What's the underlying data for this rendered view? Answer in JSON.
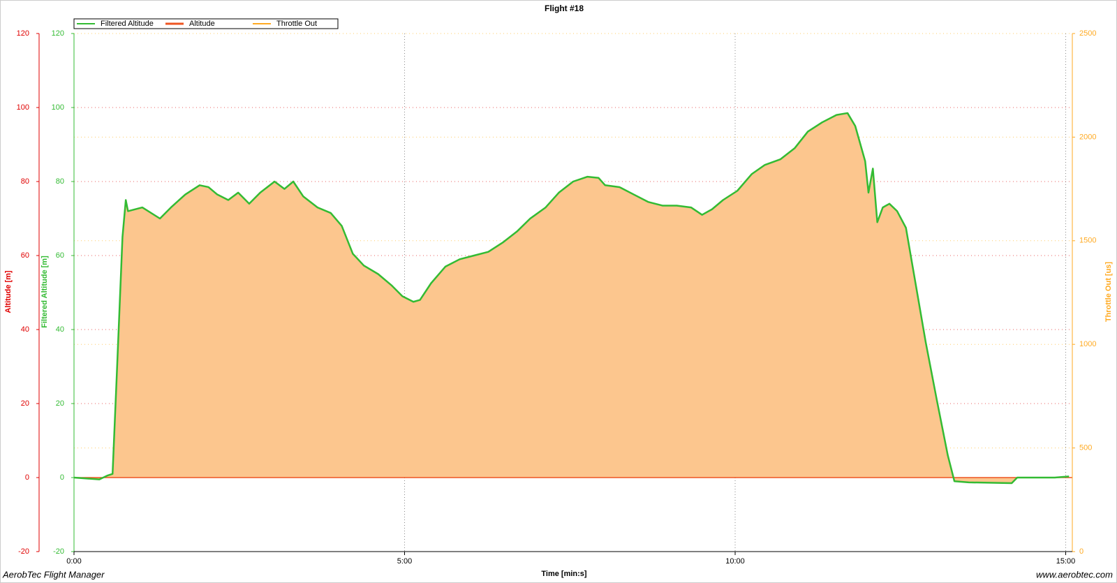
{
  "chart_data": {
    "type": "line",
    "title": "Flight #18",
    "x_label": "Time [min:s]",
    "y_label": "Altitude [m]",
    "y_label_2": "Filtered Altitude [m]",
    "y2_label": "Throttle Out [us]",
    "annotations": [
      "AerobTec Flight Manager",
      "www.aerobtec.com"
    ],
    "x": [
      0,
      23,
      30,
      35,
      39,
      44,
      47,
      49,
      62,
      78,
      88,
      101,
      114,
      122,
      130,
      140,
      149,
      159,
      169,
      182,
      191,
      199,
      208,
      221,
      233,
      243,
      253,
      263,
      276,
      288,
      298,
      308,
      314,
      324,
      337,
      350,
      363,
      376,
      389,
      402,
      414,
      428,
      440,
      453,
      466,
      476,
      482,
      495,
      508,
      521,
      534,
      547,
      560,
      570,
      579,
      589,
      602,
      615,
      627,
      641,
      654,
      666,
      679,
      692,
      702,
      709,
      718,
      721,
      725,
      729,
      734,
      740,
      747,
      755,
      764,
      773,
      783,
      793,
      799,
      812,
      851,
      856,
      890,
      903
    ],
    "series": [
      {
        "name": "Filtered Altitude",
        "color": "#33bb33",
        "values": [
          0,
          -0.5,
          0.5,
          1,
          29,
          65,
          75,
          72,
          73,
          70,
          73,
          76.5,
          79,
          78.5,
          76.5,
          75,
          77,
          74,
          77,
          80,
          78,
          80,
          76,
          73,
          71.5,
          68,
          60.5,
          57.3,
          55,
          52,
          49,
          47.5,
          48,
          52.5,
          57,
          59,
          60,
          61,
          63.5,
          66.5,
          70,
          73,
          77,
          80,
          81.3,
          81,
          79,
          78.5,
          76.5,
          74.5,
          73.5,
          73.5,
          73,
          71,
          72.5,
          75,
          77.5,
          82,
          84.5,
          86,
          89,
          93.5,
          96,
          98,
          98.5,
          95,
          85.5,
          77,
          83.5,
          69,
          73,
          74,
          72,
          67.5,
          52,
          36.5,
          21,
          6,
          -1,
          -1.3,
          -1.5,
          0,
          0,
          0.3
        ]
      },
      {
        "name": "Altitude",
        "color": "#ee5522",
        "fill": "#fcc68e",
        "area": true,
        "values": [
          0,
          -0.5,
          0.5,
          1,
          29,
          65,
          75,
          72,
          73,
          70,
          73,
          76.5,
          79,
          78.5,
          76.5,
          75,
          77,
          74,
          77,
          80,
          78,
          80,
          76,
          73,
          71.5,
          68,
          60.5,
          57.3,
          55,
          52,
          49,
          47.5,
          48,
          52.5,
          57,
          59,
          60,
          61,
          63.5,
          66.5,
          70,
          73,
          77,
          80,
          81.3,
          81,
          79,
          78.5,
          76.5,
          74.5,
          73.5,
          73.5,
          73,
          71,
          72.5,
          75,
          77.5,
          82,
          84.5,
          86,
          89,
          93.5,
          96,
          98,
          98.5,
          95,
          85.5,
          77,
          83.5,
          69,
          73,
          74,
          72,
          67.5,
          52,
          36.5,
          21,
          6,
          -1,
          -1.3,
          -1.5,
          0,
          0,
          0.3
        ]
      },
      {
        "name": "Throttle Out",
        "color": "#ffaa22",
        "axis": "y2",
        "values": [
          null,
          null,
          null,
          null,
          null,
          null,
          null,
          null,
          null,
          null,
          null,
          null,
          null,
          null,
          null,
          null,
          null,
          null,
          null,
          null,
          null,
          null,
          null,
          null,
          null,
          null,
          null,
          null,
          null,
          null,
          null,
          null,
          null,
          null,
          null,
          null,
          null,
          null,
          null,
          null,
          null,
          null,
          null,
          null,
          null,
          null,
          null,
          null,
          null,
          null,
          null,
          null,
          null,
          null,
          null,
          null,
          null,
          null,
          null,
          null,
          null,
          null,
          null,
          null,
          null,
          null,
          null,
          null,
          null,
          null,
          null,
          null,
          null,
          null,
          null,
          null,
          null,
          null,
          null,
          null,
          null,
          null,
          null,
          null
        ]
      }
    ],
    "xlim": [
      0,
      906
    ],
    "xticks": [
      {
        "value": 0,
        "label": "0:00"
      },
      {
        "value": 300,
        "label": "5:00"
      },
      {
        "value": 600,
        "label": "10:00"
      },
      {
        "value": 900,
        "label": "15:00"
      }
    ],
    "ylim": [
      -20,
      120
    ],
    "yticks": [
      -20,
      0,
      20,
      40,
      60,
      80,
      100,
      120
    ],
    "y2lim": [
      0,
      2500
    ],
    "y2ticks": [
      0,
      500,
      1000,
      1500,
      2000,
      2500
    ],
    "grid": true
  }
}
